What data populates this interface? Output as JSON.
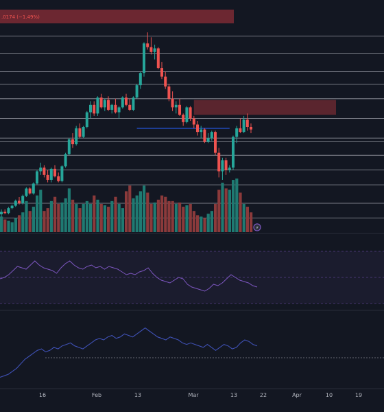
{
  "header": {
    "change_text": ".0174 (−1.49%)"
  },
  "colors": {
    "background": "#131722",
    "up": "#26a69a",
    "down": "#ef5350",
    "up_volume": "#1f7a72",
    "down_volume": "#8b3a3b",
    "indicator_line": "#7e57c2",
    "indicator2_line": "#3f51b5",
    "level_line": "#b2b5be",
    "zone_fill": "#8b2e37",
    "blue_level": "#2962ff",
    "separator": "#2a2e39",
    "axis_text": "#b2b5be"
  },
  "chart_data": [
    {
      "type": "candlestick",
      "title": "",
      "x_ticks": [
        "16",
        "Feb",
        "13",
        "Mar",
        "13",
        "22",
        "Apr",
        "10",
        "19"
      ],
      "candles": [
        [
          100,
          102,
          99,
          101
        ],
        [
          101,
          102,
          100,
          100.5
        ],
        [
          100.5,
          103,
          100,
          102.5
        ],
        [
          102.5,
          104,
          102,
          103.5
        ],
        [
          103.5,
          106,
          103,
          105.5
        ],
        [
          105.5,
          107,
          104,
          104.5
        ],
        [
          104.5,
          108,
          104,
          107.5
        ],
        [
          107.5,
          111,
          107,
          110.5
        ],
        [
          110.5,
          111,
          108,
          108.5
        ],
        [
          108.5,
          113,
          108,
          112.5
        ],
        [
          112.5,
          118,
          112,
          117.5
        ],
        [
          117.5,
          121,
          116,
          119
        ],
        [
          119,
          120,
          115,
          116
        ],
        [
          116,
          118,
          113,
          114
        ],
        [
          114,
          119,
          113,
          118.5
        ],
        [
          118.5,
          120,
          115,
          115.5
        ],
        [
          115.5,
          117,
          113,
          113.5
        ],
        [
          113.5,
          120,
          113,
          119.5
        ],
        [
          119.5,
          125,
          119,
          124.5
        ],
        [
          124.5,
          131,
          124,
          130.5
        ],
        [
          130.5,
          133,
          127,
          128.5
        ],
        [
          128.5,
          136,
          128,
          135
        ],
        [
          135,
          137,
          131,
          131.5
        ],
        [
          131.5,
          136,
          131,
          135.5
        ],
        [
          135.5,
          142,
          135,
          141.5
        ],
        [
          141.5,
          146,
          139,
          144.5
        ],
        [
          144.5,
          146,
          140,
          141
        ],
        [
          141,
          148,
          140,
          147.5
        ],
        [
          147.5,
          149,
          143,
          143.5
        ],
        [
          143.5,
          147,
          142,
          146.5
        ],
        [
          146.5,
          148,
          142,
          142.5
        ],
        [
          142.5,
          145,
          141,
          144.5
        ],
        [
          144.5,
          147,
          141,
          141.5
        ],
        [
          141.5,
          144,
          139,
          143.5
        ],
        [
          143.5,
          148,
          143,
          147.5
        ],
        [
          147.5,
          149,
          144,
          144.5
        ],
        [
          144.5,
          147,
          142,
          142.5
        ],
        [
          142.5,
          148,
          142,
          147.5
        ],
        [
          147.5,
          153,
          147,
          152.5
        ],
        [
          152.5,
          158,
          151,
          157.5
        ],
        [
          157.5,
          170,
          156,
          169.5
        ],
        [
          169.5,
          174,
          167,
          168
        ],
        [
          168,
          172,
          165,
          166
        ],
        [
          166,
          169,
          163,
          167.5
        ],
        [
          167.5,
          168,
          159,
          159.5
        ],
        [
          159.5,
          162,
          155,
          156
        ],
        [
          156,
          158,
          151,
          152
        ],
        [
          152,
          153,
          146,
          147
        ],
        [
          147,
          150,
          142,
          143.5
        ],
        [
          143.5,
          146,
          141,
          144.5
        ],
        [
          144.5,
          147,
          140,
          140.5
        ],
        [
          140.5,
          141,
          136,
          137.5
        ],
        [
          137.5,
          144,
          137,
          143.5
        ],
        [
          143.5,
          144,
          138,
          139
        ],
        [
          139,
          140,
          135,
          136.5
        ],
        [
          136.5,
          138,
          132,
          133.5
        ],
        [
          133.5,
          136,
          131,
          134.5
        ],
        [
          134.5,
          135,
          129,
          129.5
        ],
        [
          129.5,
          133,
          129,
          131
        ],
        [
          131,
          134,
          130,
          133.5
        ],
        [
          133.5,
          134,
          124,
          125
        ],
        [
          125,
          127,
          115,
          117.5
        ],
        [
          117.5,
          123,
          114,
          122
        ],
        [
          122,
          123,
          116,
          118
        ],
        [
          118,
          120,
          117,
          119
        ],
        [
          119,
          132,
          118,
          131.5
        ],
        [
          131.5,
          136,
          129,
          135
        ],
        [
          135,
          139,
          133,
          133.5
        ],
        [
          133.5,
          140,
          133,
          138.5
        ],
        [
          138.5,
          141,
          134,
          135.5
        ],
        [
          135.5,
          137,
          133,
          134.5
        ]
      ],
      "volumes": [
        22,
        18,
        16,
        14,
        20,
        24,
        28,
        44,
        30,
        36,
        52,
        60,
        30,
        34,
        44,
        50,
        40,
        42,
        48,
        62,
        46,
        40,
        34,
        40,
        44,
        40,
        52,
        46,
        40,
        38,
        36,
        44,
        50,
        40,
        34,
        58,
        66,
        48,
        52,
        58,
        66,
        56,
        40,
        42,
        46,
        52,
        50,
        44,
        44,
        40,
        42,
        36,
        38,
        40,
        30,
        24,
        22,
        20,
        26,
        30,
        40,
        60,
        70,
        62,
        60,
        74,
        76,
        56,
        40,
        36,
        28
      ],
      "levels": [
        172.5,
        165.5,
        158,
        153,
        147,
        139,
        131,
        129.5,
        124,
        118,
        112,
        104.5,
        98.5
      ]
    },
    {
      "type": "line",
      "title": "",
      "values": [
        44,
        46,
        50,
        56,
        62,
        60,
        58,
        64,
        70,
        64,
        60,
        58,
        56,
        52,
        60,
        66,
        70,
        64,
        60,
        58,
        62,
        64,
        60,
        62,
        58,
        62,
        60,
        58,
        54,
        50,
        52,
        50,
        54,
        56,
        60,
        52,
        46,
        42,
        40,
        38,
        42,
        46,
        44,
        36,
        32,
        30,
        28,
        26,
        30,
        36,
        34,
        38,
        44,
        50,
        46,
        42,
        40,
        38,
        34,
        32
      ],
      "ylim": [
        0,
        100
      ]
    },
    {
      "type": "line",
      "title": "",
      "values": [
        6,
        8,
        10,
        14,
        18,
        24,
        30,
        34,
        38,
        42,
        44,
        40,
        42,
        46,
        44,
        48,
        50,
        52,
        48,
        46,
        44,
        48,
        52,
        56,
        58,
        56,
        60,
        62,
        58,
        60,
        64,
        62,
        60,
        64,
        68,
        72,
        68,
        64,
        60,
        58,
        56,
        60,
        58,
        56,
        52,
        50,
        52,
        50,
        48,
        46,
        50,
        46,
        42,
        46,
        50,
        48,
        44,
        46,
        52,
        56,
        54,
        50,
        48
      ],
      "ylim": [
        0,
        90
      ]
    }
  ]
}
